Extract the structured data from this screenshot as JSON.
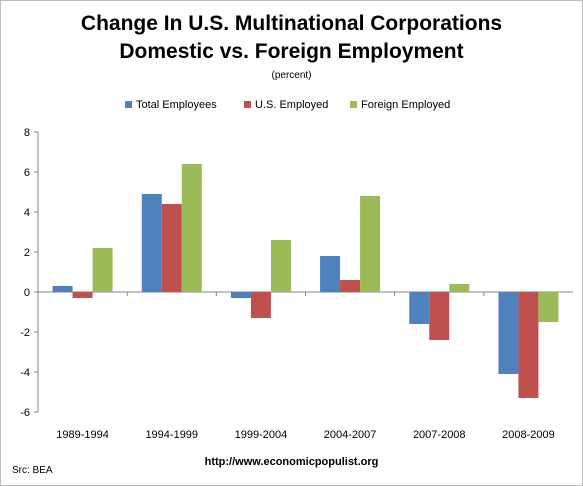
{
  "chart_data": {
    "type": "bar",
    "title": "Change  In U.S. Multinational Corporations",
    "title_line2": "Domestic vs. Foreign Employment",
    "subtitle": "(percent)",
    "xlabel": "",
    "ylabel": "",
    "categories": [
      "1989-1994",
      "1994-1999",
      "1999-2004",
      "2004-2007",
      "2007-2008",
      "2008-2009"
    ],
    "series": [
      {
        "name": "Total Employees",
        "color": "#4f81bd",
        "values": [
          0.3,
          4.9,
          -0.3,
          1.8,
          -1.6,
          -4.1
        ]
      },
      {
        "name": "U.S. Employed",
        "color": "#c0504d",
        "values": [
          -0.3,
          4.4,
          -1.3,
          0.6,
          -2.4,
          -5.3
        ]
      },
      {
        "name": "Foreign Employed",
        "color": "#9bbb59",
        "values": [
          2.2,
          6.4,
          2.6,
          4.8,
          0.4,
          -1.5
        ]
      }
    ],
    "ylim": [
      -6,
      8
    ],
    "yticks": [
      -6,
      -4,
      -2,
      0,
      2,
      4,
      6,
      8
    ],
    "grid": false,
    "legend_position": "top"
  },
  "footer": {
    "url": "http://www.economicpopulist.org",
    "source": "Src:  BEA"
  }
}
